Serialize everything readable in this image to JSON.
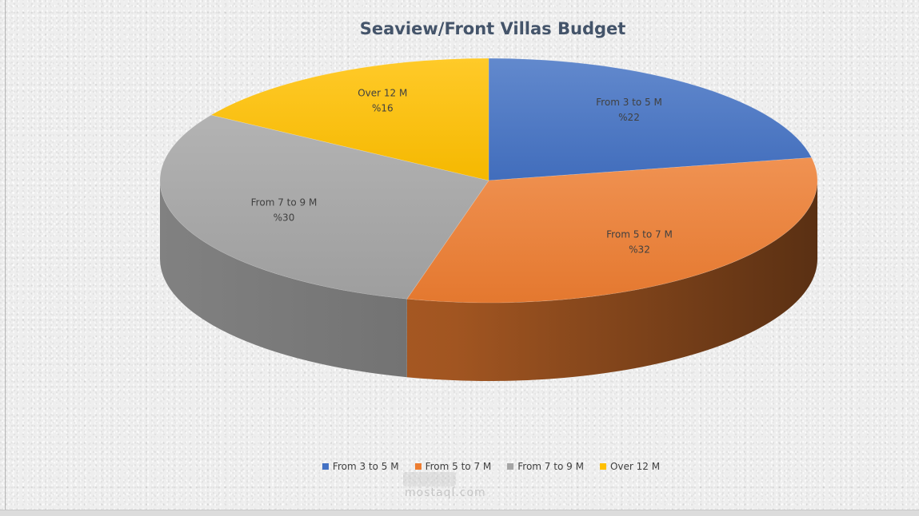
{
  "chart_data": {
    "type": "pie",
    "style": "3d",
    "title": "Seaview/Front Villas Budget",
    "categories": [
      "From 3 to 5 M",
      "From 5 to 7 M",
      "From 7 to 9 M",
      "Over 12 M"
    ],
    "values": [
      22,
      32,
      30,
      16
    ],
    "data_labels": [
      {
        "category": "From 3 to 5 M",
        "value": "%22"
      },
      {
        "category": "From 5 to 7 M",
        "value": "%32"
      },
      {
        "category": "From 7 to 9 M",
        "value": "%30"
      },
      {
        "category": "Over 12 M",
        "value": "%16"
      }
    ],
    "colors": [
      "#4472c4",
      "#ed7d31",
      "#a5a5a5",
      "#ffc000"
    ],
    "legend": {
      "position": "bottom",
      "items": [
        {
          "label": "From 3 to 5 M",
          "color": "#4472c4"
        },
        {
          "label": "From 5 to 7 M",
          "color": "#ed7d31"
        },
        {
          "label": "From 7 to 9 M",
          "color": "#a5a5a5"
        },
        {
          "label": "Over 12 M",
          "color": "#ffc000"
        }
      ]
    }
  },
  "watermark": {
    "text": "mostaql.com"
  }
}
